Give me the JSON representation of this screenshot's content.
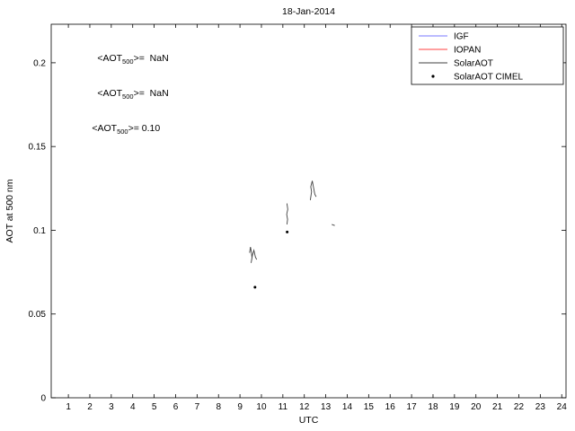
{
  "figure": {
    "title": "18-Jan-2014"
  },
  "chart_data": {
    "type": "line",
    "title": "18-Jan-2014",
    "xlabel": "UTC",
    "ylabel": "AOT at 500 nm",
    "xlim": [
      0.2,
      24.2
    ],
    "ylim": [
      0,
      0.223
    ],
    "grid": false,
    "xticks": [
      1,
      2,
      3,
      4,
      5,
      6,
      7,
      8,
      9,
      10,
      11,
      12,
      13,
      14,
      15,
      16,
      17,
      18,
      19,
      20,
      21,
      22,
      23,
      24
    ],
    "ytick_values": [
      0,
      0.05,
      0.1,
      0.15,
      0.2
    ],
    "ytick_labels": [
      "0",
      "0.05",
      "0.1",
      "0.15",
      "0.2"
    ],
    "legend": {
      "position": "top-right",
      "entries": [
        {
          "label": "IGF",
          "color": "#7777ff",
          "sample": "line"
        },
        {
          "label": "IOPAN",
          "color": "#ff4040",
          "sample": "line"
        },
        {
          "label": "SolarAOT",
          "color": "#404040",
          "sample": "line"
        },
        {
          "label": "SolarAOT CIMEL",
          "color": "#000000",
          "sample": "marker"
        }
      ]
    },
    "annotations": [
      {
        "prefix": "<AOT",
        "sub": "500",
        "suffix": ">=  NaN",
        "color": "#0000ff",
        "x": 2.35,
        "y": 0.203
      },
      {
        "prefix": "<AOT",
        "sub": "500",
        "suffix": ">=  NaN",
        "color": "#ff0000",
        "x": 2.35,
        "y": 0.182
      },
      {
        "prefix": "<AOT",
        "sub": "500",
        "suffix": ">= 0.10",
        "color": "#000000",
        "x": 2.1,
        "y": 0.161
      }
    ],
    "series": [
      {
        "name": "IGF",
        "type": "line",
        "color": "#7777ff",
        "segments": []
      },
      {
        "name": "IOPAN",
        "type": "line",
        "color": "#ff4040",
        "segments": []
      },
      {
        "name": "SolarAOT",
        "type": "line",
        "color": "#404040",
        "segments": [
          [
            [
              9.45,
              0.0865
            ],
            [
              9.49,
              0.09
            ],
            [
              9.53,
              0.087
            ],
            [
              9.56,
              0.0835
            ],
            [
              9.52,
              0.0805
            ],
            [
              9.58,
              0.085
            ],
            [
              9.65,
              0.088
            ],
            [
              9.72,
              0.084
            ],
            [
              9.78,
              0.0825
            ]
          ],
          [
            [
              11.19,
              0.116
            ],
            [
              11.23,
              0.1125
            ],
            [
              11.18,
              0.1095
            ],
            [
              11.22,
              0.1065
            ],
            [
              11.19,
              0.1035
            ]
          ],
          [
            [
              12.28,
              0.118
            ],
            [
              12.34,
              0.123
            ],
            [
              12.3,
              0.126
            ],
            [
              12.37,
              0.1295
            ],
            [
              12.43,
              0.1255
            ],
            [
              12.49,
              0.1215
            ],
            [
              12.55,
              0.12
            ]
          ],
          [
            [
              13.28,
              0.1035
            ],
            [
              13.42,
              0.1028
            ]
          ]
        ]
      },
      {
        "name": "SolarAOT CIMEL",
        "type": "scatter",
        "color": "#000000",
        "points": [
          [
            9.7,
            0.066
          ],
          [
            11.2,
            0.099
          ]
        ]
      }
    ]
  }
}
